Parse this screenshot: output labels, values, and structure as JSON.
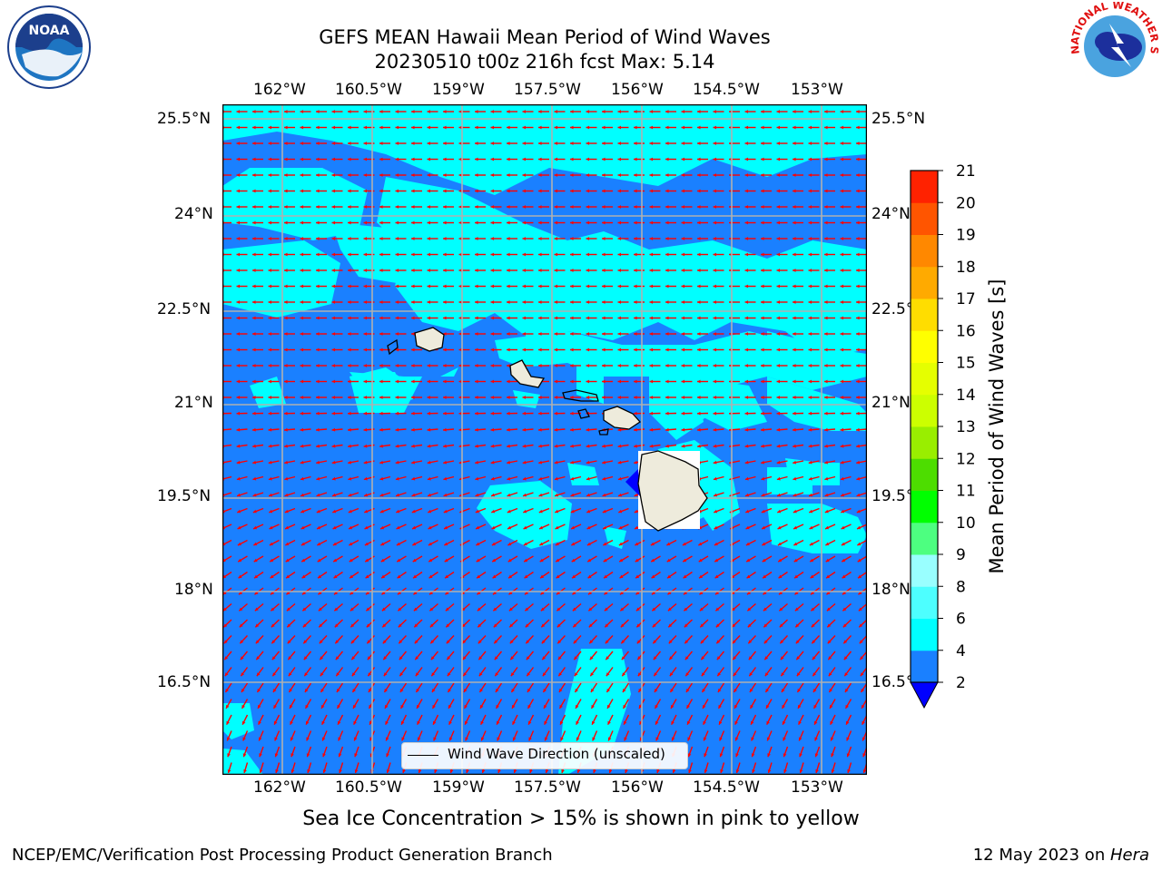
{
  "title": {
    "line1": "GEFS MEAN Hawaii Mean Period of Wind Waves",
    "line2": "20230510 t00z 216h fcst   Max: 5.14"
  },
  "logos": {
    "left": "noaa-logo",
    "left_text": "NOAA",
    "right": "national-weather-service-logo",
    "right_text": "NATIONAL WEATHER SERVICE"
  },
  "map": {
    "lon_ticks": [
      "162°W",
      "160.5°W",
      "159°W",
      "157.5°W",
      "156°W",
      "154.5°W",
      "153°W"
    ],
    "lat_ticks": [
      "25.5°N",
      "24°N",
      "22.5°N",
      "21°N",
      "19.5°N",
      "18°N",
      "16.5°N"
    ],
    "legend_label": "Wind Wave Direction (unscaled)",
    "ocean_color": "#1a80ff",
    "cyan_color": "#00ffff",
    "arrow_color": "#ff0000",
    "land_color": "#eeebdc"
  },
  "colorbar": {
    "label": "Mean Period of Wind Waves [s]",
    "ticks": [
      "2",
      "4",
      "6",
      "8",
      "9",
      "10",
      "11",
      "12",
      "13",
      "14",
      "15",
      "16",
      "17",
      "18",
      "19",
      "20",
      "21"
    ],
    "colors": [
      "#1a80ff",
      "#00ffff",
      "#4dffff",
      "#99ffff",
      "#4dff80",
      "#00ff00",
      "#4ddd00",
      "#99ee00",
      "#ccff00",
      "#e5ff00",
      "#ffff00",
      "#ffdd00",
      "#ffaa00",
      "#ff8800",
      "#ff5500",
      "#ff2200"
    ],
    "under_color": "#0000ff"
  },
  "notes": {
    "sea_ice": "Sea Ice Concentration > 15% is shown in pink to yellow",
    "footer_left": "NCEP/EMC/Verification Post Processing Product Generation Branch",
    "footer_right_date": "12 May 2023 on ",
    "footer_right_host": "Hera"
  }
}
